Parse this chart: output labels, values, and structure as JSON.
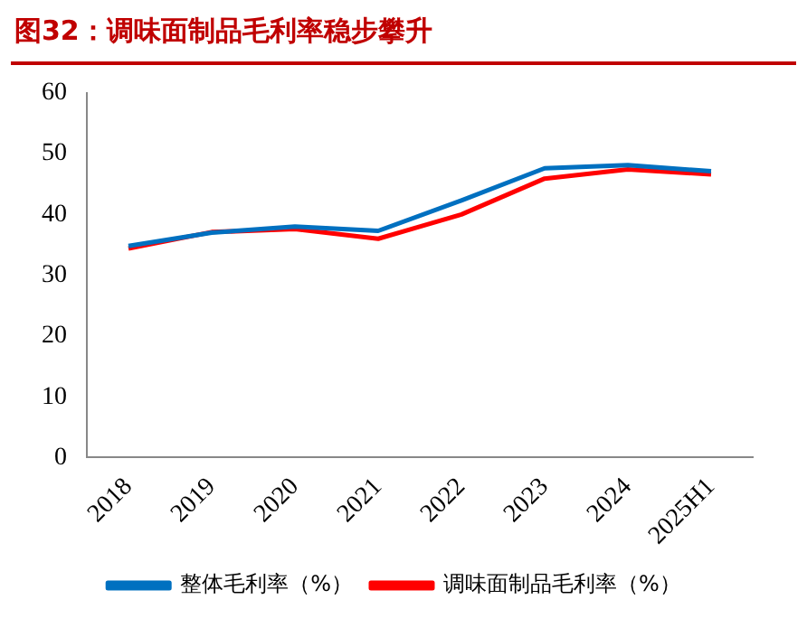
{
  "chart_data": {
    "type": "line",
    "title": "图32：调味面制品毛利率稳步攀升",
    "categories": [
      "2018",
      "2019",
      "2020",
      "2021",
      "2022",
      "2023",
      "2024",
      "2025H1"
    ],
    "series": [
      {
        "name": "整体毛利率（%）",
        "color": "#0070c0",
        "values": [
          34.8,
          37.0,
          38.0,
          37.3,
          42.3,
          47.6,
          48.1,
          47.1
        ]
      },
      {
        "name": "调味面制品毛利率（%）",
        "color": "#ff0000",
        "values": [
          34.4,
          37.1,
          37.6,
          36.0,
          40.0,
          45.9,
          47.4,
          46.6
        ]
      }
    ],
    "ylim": [
      0,
      60
    ],
    "yticks": [
      0,
      10,
      20,
      30,
      40,
      50,
      60
    ],
    "grid": false,
    "legend": "bottom",
    "marker": "none",
    "line_style": "solid"
  }
}
